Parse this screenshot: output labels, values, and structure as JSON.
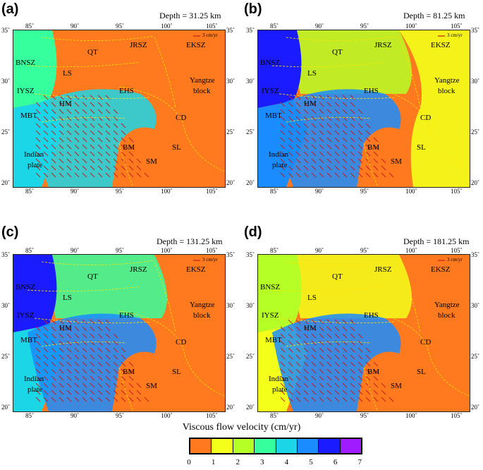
{
  "panels": [
    {
      "label": "(a)",
      "depth": "Depth = 31.25 km"
    },
    {
      "label": "(b)",
      "depth": "Depth = 81.25 km"
    },
    {
      "label": "(c)",
      "depth": "Depth = 131.25 km"
    },
    {
      "label": "(d)",
      "depth": "Depth = 181.25 km"
    }
  ],
  "axis": {
    "lon_ticks": [
      "85˚",
      "90˚",
      "95˚",
      "100˚",
      "105˚"
    ],
    "lat_ticks": [
      "35˚",
      "30˚",
      "25˚",
      "20˚"
    ]
  },
  "map_labels": {
    "qt": "QT",
    "jrsz": "JRSZ",
    "eksz": "EKSZ",
    "bnsz": "BNSZ",
    "ls": "LS",
    "iysz": "IYSZ",
    "ehs": "EHS",
    "hm": "HM",
    "mbt": "MBT",
    "cd": "CD",
    "bm": "BM",
    "sl": "SL",
    "sm": "SM",
    "yangtze": "Yangtze",
    "block": "block",
    "indian": "Indian",
    "plate": "plate",
    "scale": "3 cm/yr"
  },
  "colorbar": {
    "title": "Viscous flow velocity (cm/yr)",
    "ticks": [
      "0",
      "1",
      "2",
      "3",
      "4",
      "5",
      "6",
      "7"
    ],
    "colors": [
      "#ff7a1e",
      "#f4ff1a",
      "#b6ff26",
      "#36ff9d",
      "#1bd6e7",
      "#1a8cff",
      "#1b1bff",
      "#a01bff"
    ]
  }
}
